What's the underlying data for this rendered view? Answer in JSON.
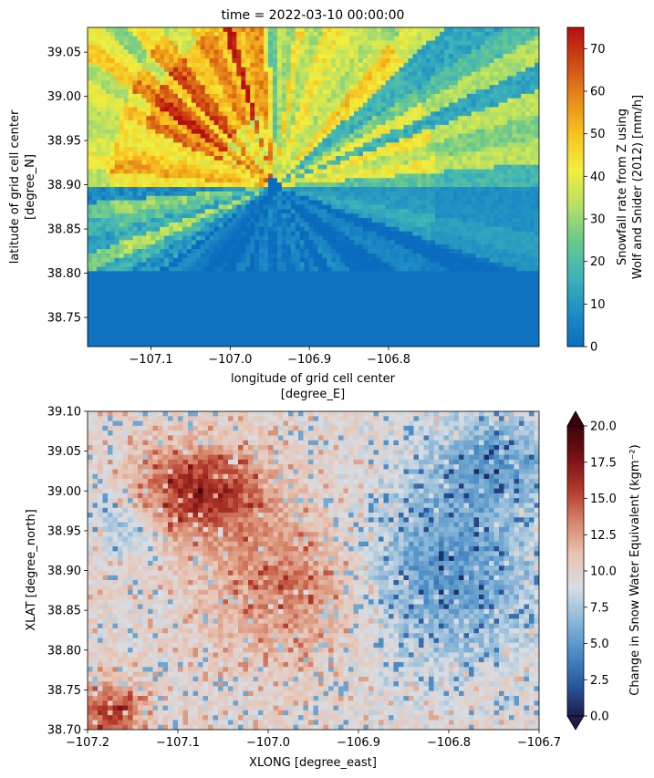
{
  "chart_data": [
    {
      "type": "heatmap",
      "title": "time = 2022-03-10 00:00:00",
      "xlabel_line1": "longitude of grid cell center",
      "xlabel_line2": "[degree_E]",
      "ylabel_line1": "latitude of grid cell center",
      "ylabel_line2": "[degree_N]",
      "xlim": [
        -107.18,
        -106.61
      ],
      "ylim": [
        38.717,
        39.078
      ],
      "xticks": [
        -107.1,
        -107.0,
        -106.9,
        -106.8
      ],
      "xtick_labels": [
        "−107.1",
        "−107.0",
        "−106.9",
        "−106.8"
      ],
      "yticks": [
        38.75,
        38.8,
        38.85,
        38.9,
        38.95,
        39.0,
        39.05
      ],
      "ytick_labels": [
        "38.75",
        "38.80",
        "38.85",
        "38.90",
        "38.95",
        "39.00",
        "39.05"
      ],
      "colorbar": {
        "label_line1": "Snowfall rate from Z using",
        "label_line2": "Wolf and Snider (2012) [mm/h]",
        "range": [
          0,
          75
        ],
        "ticks": [
          0,
          10,
          20,
          30,
          40,
          50,
          60,
          70
        ],
        "tick_labels": [
          "0",
          "10",
          "20",
          "30",
          "40",
          "50",
          "60",
          "70"
        ],
        "colormap": "HomeyerRainbow",
        "colors": [
          "#0b6cbf",
          "#1f8fc4",
          "#3fb4b8",
          "#6cc98c",
          "#b8e063",
          "#f2ee3e",
          "#f7c21f",
          "#e8891a",
          "#cf4a14",
          "#b70e0e"
        ]
      },
      "radar_center": {
        "lon": -106.945,
        "lat": 38.898
      },
      "description_values": {
        "peak_sector_rate": 55,
        "background_rate": 2
      }
    },
    {
      "type": "heatmap",
      "title": "",
      "xlabel": "XLONG [degree_east]",
      "ylabel": "XLAT [degree_north]",
      "xlim": [
        -107.2,
        -106.7
      ],
      "ylim": [
        38.7,
        39.1
      ],
      "xticks": [
        -107.2,
        -107.1,
        -107.0,
        -106.9,
        -106.8,
        -106.7
      ],
      "xtick_labels": [
        "−107.2",
        "−107.1",
        "−107.0",
        "−106.9",
        "−106.8",
        "−106.7"
      ],
      "yticks": [
        38.7,
        38.75,
        38.8,
        38.85,
        38.9,
        38.95,
        39.0,
        39.05,
        39.1
      ],
      "ytick_labels": [
        "38.70",
        "38.75",
        "38.80",
        "38.85",
        "38.90",
        "38.95",
        "39.00",
        "39.05",
        "39.10"
      ],
      "colorbar": {
        "label": "Change in Snow Water Equivalent (kgm⁻²)",
        "range": [
          0,
          20
        ],
        "ticks": [
          0,
          2.5,
          5,
          7.5,
          10,
          12.5,
          15,
          17.5,
          20
        ],
        "tick_labels": [
          "0.0",
          "2.5",
          "5.0",
          "7.5",
          "10.0",
          "12.5",
          "15.0",
          "17.5",
          "20.0"
        ],
        "extend": "both",
        "colormap": "RdBu_r",
        "colors": [
          "#1a1f4e",
          "#2c5aa0",
          "#4c8ec6",
          "#8fb9d8",
          "#d8dde3",
          "#e8c4b4",
          "#d7876c",
          "#b53a2a",
          "#7a1016",
          "#3d0309"
        ]
      }
    }
  ]
}
